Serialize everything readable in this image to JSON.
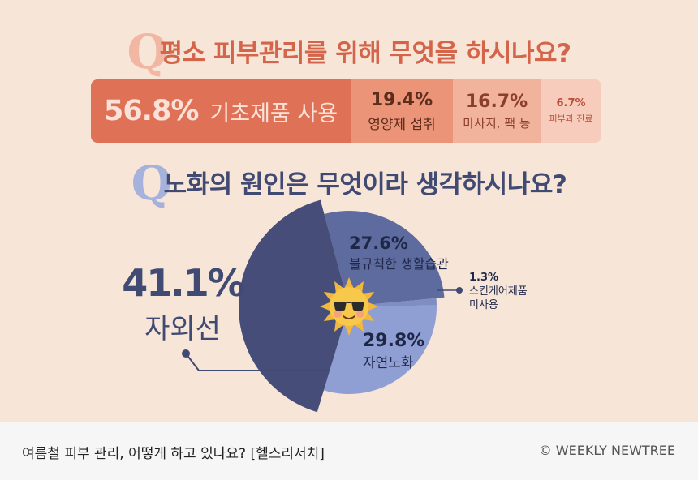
{
  "q1": {
    "q": "Q",
    "title": "평소 피부관리를 위해 무엇을 하시나요?"
  },
  "q2": {
    "q": "Q",
    "title": "노화의 원인은 무엇이라 생각하시나요?"
  },
  "chart_data": [
    {
      "type": "bar",
      "stacked": true,
      "categories": [
        "기초제품 사용",
        "영양제 섭취",
        "마사지, 팩 등",
        "피부과 진료"
      ],
      "values": [
        56.8,
        19.4,
        16.7,
        6.7
      ],
      "value_labels": [
        "56.8%",
        "19.4%",
        "16.7%",
        "6.7%"
      ],
      "colors": [
        "#df7256",
        "#eb9477",
        "#f2b39c",
        "#f7ccbc"
      ]
    },
    {
      "type": "pie",
      "categories": [
        "불규칙한 생활습관",
        "스킨케어제품 미사용",
        "자연노화",
        "자외선"
      ],
      "values": [
        27.6,
        1.3,
        29.8,
        41.1
      ],
      "value_labels": [
        "27.6%",
        "1.3%",
        "29.8%",
        "41.1%"
      ],
      "colors": [
        "#5d6b9f",
        "#7e8dc2",
        "#8f9ed3",
        "#454d78"
      ]
    }
  ],
  "pie_labels": {
    "habit": {
      "pct": "27.6%",
      "text": "불규칙한 생활습관"
    },
    "skin": {
      "pct": "1.3%",
      "line1": "스킨케어제품",
      "line2": "미사용"
    },
    "aging": {
      "pct": "29.8%",
      "text": "자연노화"
    },
    "uv": {
      "pct": "41.1%",
      "text": "자외선"
    }
  },
  "footer": {
    "caption": "여름철 피부 관리, 어떻게 하고 있나요? [헬스리서치]",
    "copyright": "© WEEKLY NEWTREE"
  },
  "icons": {
    "center": "sun-with-sunglasses-icon"
  }
}
